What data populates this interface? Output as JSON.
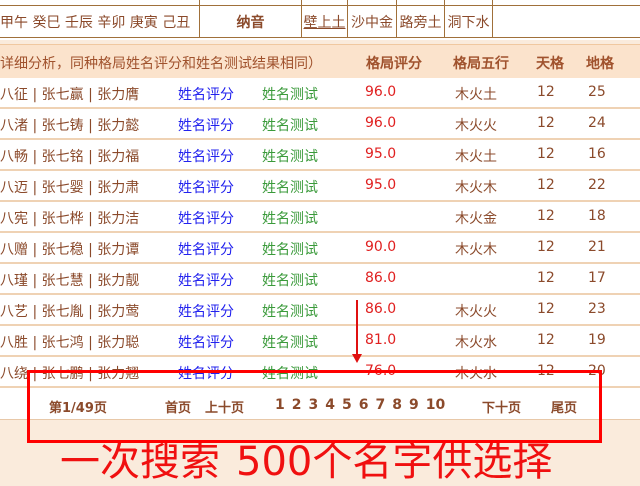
{
  "bazi_row": {
    "pillars": "甲午 癸巳 壬辰 辛卯 庚寅 己丑",
    "nayin_label": "纳音",
    "nayin": [
      "壁上土",
      "沙中金",
      "路旁土",
      "洞下水"
    ]
  },
  "table_header": {
    "note": "详细分析，同种格局姓名评分和姓名测试结果相同）",
    "score": "格局评分",
    "wuxing": "格局五行",
    "tiange": "天格",
    "dige": "地格"
  },
  "rows": [
    {
      "names": "八征 | 张七赢 | 张力膺",
      "ping": "姓名评分",
      "test": "姓名测试",
      "score": "96.0",
      "wuxing": "木火土",
      "tiange": "12",
      "dige": "25"
    },
    {
      "names": "八渚 | 张七铸 | 张力懿",
      "ping": "姓名评分",
      "test": "姓名测试",
      "score": "96.0",
      "wuxing": "木火火",
      "tiange": "12",
      "dige": "24"
    },
    {
      "names": "八畅 | 张七铭 | 张力福",
      "ping": "姓名评分",
      "test": "姓名测试",
      "score": "95.0",
      "wuxing": "木火土",
      "tiange": "12",
      "dige": "16"
    },
    {
      "names": "八迈 | 张七婴 | 张力肃",
      "ping": "姓名评分",
      "test": "姓名测试",
      "score": "95.0",
      "wuxing": "木火木",
      "tiange": "12",
      "dige": "22"
    },
    {
      "names": "八宪 | 张七桦 | 张力洁",
      "ping": "姓名评分",
      "test": "姓名测试",
      "score": "",
      "wuxing": "木火金",
      "tiange": "12",
      "dige": "18"
    },
    {
      "names": "八赠 | 张七稳 | 张力谭",
      "ping": "姓名评分",
      "test": "姓名测试",
      "score": "90.0",
      "wuxing": "木火木",
      "tiange": "12",
      "dige": "21"
    },
    {
      "names": "八瑾 | 张七慧 | 张力靓",
      "ping": "姓名评分",
      "test": "姓名测试",
      "score": "86.0",
      "wuxing": "",
      "tiange": "12",
      "dige": "17"
    },
    {
      "names": "八艺 | 张七胤 | 张力莺",
      "ping": "姓名评分",
      "test": "姓名测试",
      "score": "86.0",
      "wuxing": "木火火",
      "tiange": "12",
      "dige": "23"
    },
    {
      "names": "八胜 | 张七鸿 | 张力聪",
      "ping": "姓名评分",
      "test": "姓名测试",
      "score": "81.0",
      "wuxing": "木火水",
      "tiange": "12",
      "dige": "19"
    },
    {
      "names": "八绕 | 张七鹏 | 张力翘",
      "ping": "姓名评分",
      "test": "姓名测试",
      "score": "76.0",
      "wuxing": "木火水",
      "tiange": "12",
      "dige": "20"
    }
  ],
  "pager": {
    "status": "第1/49页",
    "first": "首页",
    "prev10": "上十页",
    "pages": [
      "1",
      "2",
      "3",
      "4",
      "5",
      "6",
      "7",
      "8",
      "9",
      "10"
    ],
    "next10": "下十页",
    "last": "尾页"
  },
  "annotation": {
    "line1": "一次搜索",
    "line2": "500个名字供选择",
    "color": "#f01010"
  }
}
